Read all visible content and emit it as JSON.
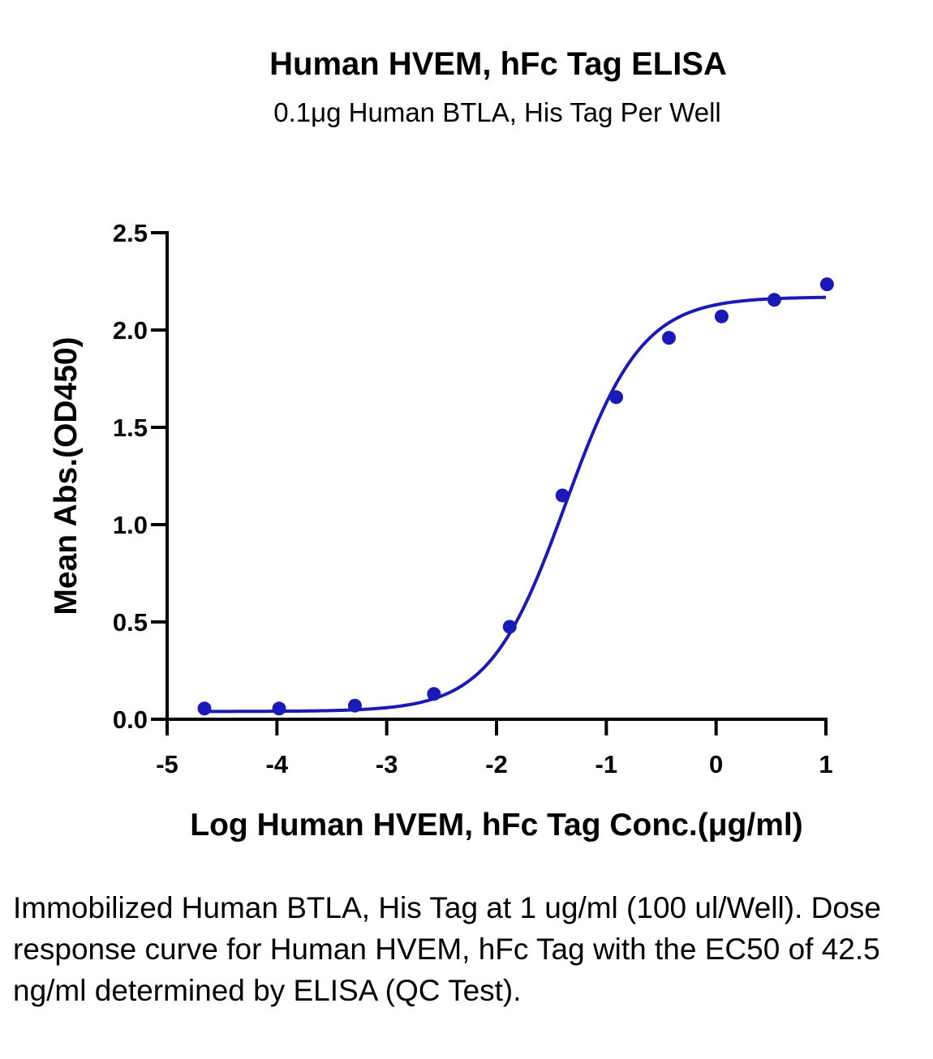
{
  "chart_data": {
    "type": "scatter",
    "title": "Human HVEM, hFc Tag ELISA",
    "subtitle": "0.1μg Human BTLA, His Tag Per Well",
    "xlabel": "Log Human HVEM, hFc Tag Conc.(μg/ml)",
    "ylabel": "Mean Abs.(OD450)",
    "xlim": [
      -5,
      1
    ],
    "ylim": [
      0,
      2.5
    ],
    "x_ticks": [
      -5,
      -4,
      -3,
      -2,
      -1,
      0,
      1
    ],
    "x_tick_labels": [
      "-5",
      "-4",
      "-3",
      "-2",
      "-1",
      "0",
      "1"
    ],
    "y_ticks": [
      0,
      0.5,
      1.0,
      1.5,
      2.0,
      2.5
    ],
    "y_tick_labels": [
      "0.0",
      "0.5",
      "1.0",
      "1.5",
      "2.0",
      "2.5"
    ],
    "grid": false,
    "series_color": "#1a1ab8",
    "points": {
      "x": [
        -4.66,
        -3.98,
        -3.29,
        -2.57,
        -1.88,
        -1.4,
        -0.91,
        -0.43,
        0.05,
        0.53,
        1.01
      ],
      "y": [
        0.055,
        0.055,
        0.07,
        0.13,
        0.475,
        1.15,
        1.655,
        1.96,
        2.07,
        2.155,
        2.235
      ]
    },
    "fit_curve": {
      "type": "4PL",
      "bottom": 0.04,
      "top": 2.17,
      "logEC50": -1.372,
      "hill": 1.25,
      "x_range": [
        -4.66,
        1.0
      ]
    }
  },
  "caption": "Immobilized Human BTLA, His Tag at 1 ug/ml (100 ul/Well). Dose response curve for Human HVEM, hFc Tag with the EC50 of 42.5 ng/ml determined by ELISA (QC Test)."
}
